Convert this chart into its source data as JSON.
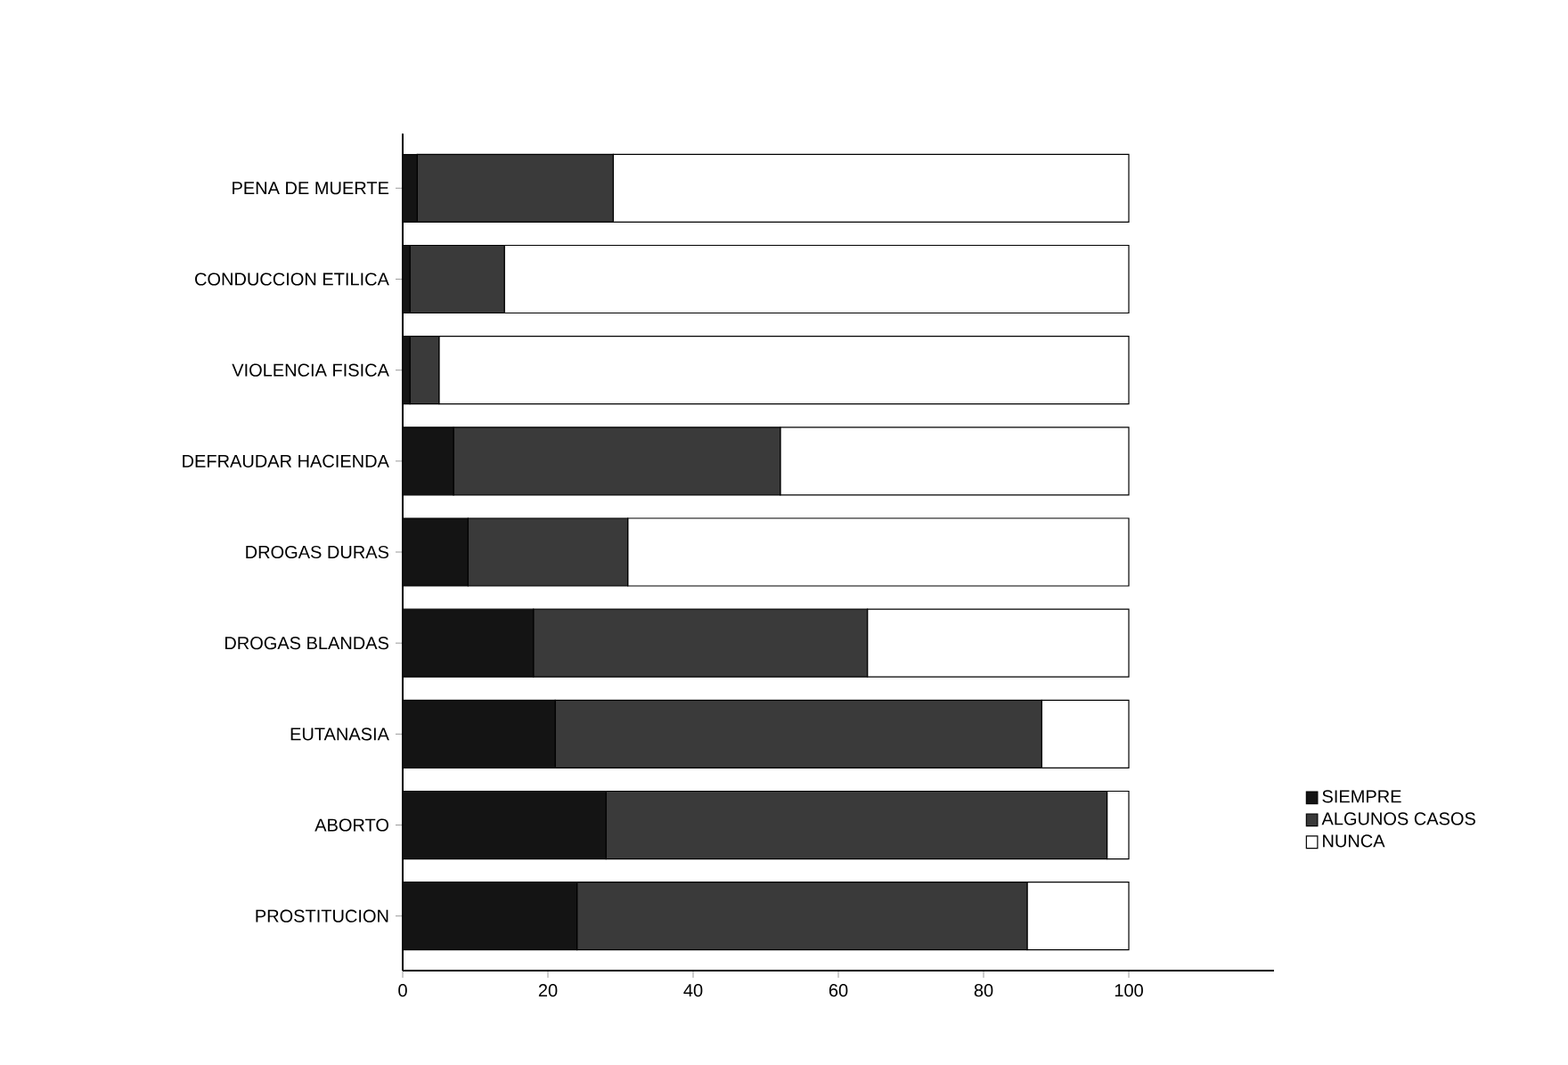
{
  "chart_data": {
    "type": "bar",
    "orientation": "horizontal",
    "stacked": true,
    "categories": [
      "PENA DE MUERTE",
      "CONDUCCION ETILICA",
      "VIOLENCIA FISICA",
      "DEFRAUDAR HACIENDA",
      "DROGAS DURAS",
      "DROGAS BLANDAS",
      "EUTANASIA",
      "ABORTO",
      "PROSTITUCION"
    ],
    "series": [
      {
        "name": "SIEMPRE",
        "color": "#141414",
        "values": [
          2,
          1,
          1,
          7,
          9,
          18,
          21,
          28,
          24
        ]
      },
      {
        "name": "ALGUNOS CASOS",
        "color": "#3a3a3a",
        "values": [
          27,
          13,
          4,
          45,
          22,
          46,
          67,
          69,
          62
        ]
      },
      {
        "name": "NUNCA",
        "color": "#ffffff",
        "values": [
          71,
          86,
          95,
          48,
          69,
          36,
          12,
          3,
          14
        ]
      }
    ],
    "xlim": [
      0,
      120
    ],
    "xticks": [
      0,
      20,
      40,
      60,
      80,
      100
    ],
    "legend": "right",
    "grid": false
  }
}
